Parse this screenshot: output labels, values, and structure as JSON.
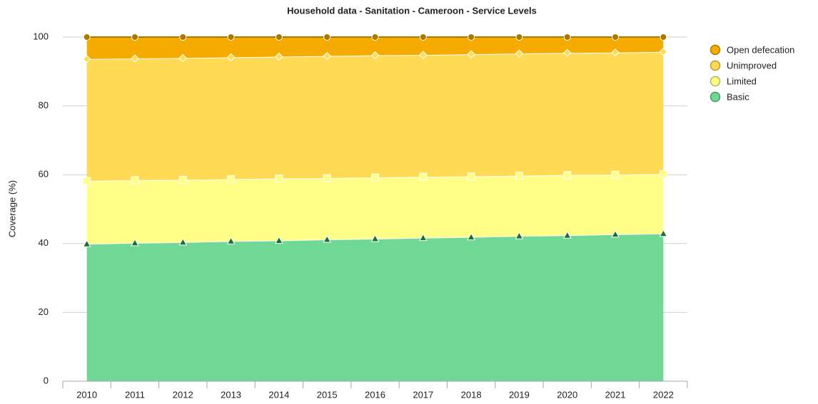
{
  "chart_data": {
    "type": "stacked_area",
    "title": "Household data - Sanitation - Cameroon - Service Levels",
    "y_label": "Coverage (%)",
    "categories": [
      "2010",
      "2011",
      "2012",
      "2013",
      "2014",
      "2015",
      "2016",
      "2017",
      "2018",
      "2019",
      "2020",
      "2021",
      "2022"
    ],
    "series": [
      {
        "name": "Open defecation",
        "color": "#f5ab00",
        "values": [
          6.4,
          6.2,
          6.1,
          5.9,
          5.7,
          5.5,
          5.3,
          5.2,
          5.0,
          4.8,
          4.6,
          4.5,
          4.3
        ]
      },
      {
        "name": "Unimproved",
        "color": "#ffdb55",
        "values": [
          35.4,
          35.4,
          35.4,
          35.4,
          35.4,
          35.5,
          35.5,
          35.4,
          35.5,
          35.5,
          35.5,
          35.5,
          35.5
        ]
      },
      {
        "name": "Limited",
        "color": "#ffff88",
        "values": [
          18.3,
          18.2,
          18.1,
          18.0,
          18.0,
          17.8,
          17.8,
          17.7,
          17.6,
          17.5,
          17.5,
          17.3,
          17.3
        ]
      },
      {
        "name": "Basic",
        "color": "#6fd894",
        "values": [
          39.9,
          40.2,
          40.4,
          40.7,
          40.9,
          41.2,
          41.4,
          41.7,
          41.9,
          42.2,
          42.4,
          42.7,
          42.9
        ]
      }
    ],
    "ylim": [
      0,
      100
    ],
    "yticks": [
      0,
      20,
      40,
      60,
      80,
      100
    ],
    "grid": true,
    "legend": "right"
  }
}
